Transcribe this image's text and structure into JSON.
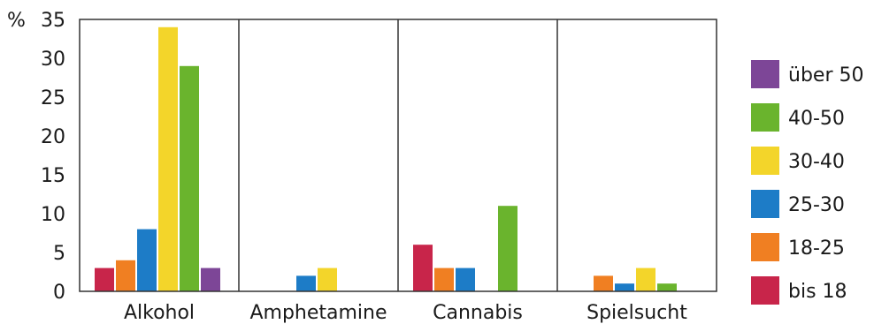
{
  "chart_data": {
    "type": "bar",
    "ylabel": "%",
    "ylim": [
      0,
      35
    ],
    "yticks": [
      0,
      5,
      10,
      15,
      20,
      25,
      30,
      35
    ],
    "categories": [
      "Alkohol",
      "Amphetamine",
      "Cannabis",
      "Spielsucht"
    ],
    "series": [
      {
        "name": "bis 18",
        "color": "#c8254a",
        "values": [
          3,
          0,
          6,
          0
        ]
      },
      {
        "name": "18-25",
        "color": "#f07f22",
        "values": [
          4,
          0,
          3,
          2
        ]
      },
      {
        "name": "25-30",
        "color": "#1d7cc7",
        "values": [
          8,
          2,
          3,
          1
        ]
      },
      {
        "name": "30-40",
        "color": "#f3d52a",
        "values": [
          34,
          3,
          0,
          3
        ]
      },
      {
        "name": "40-50",
        "color": "#6ab42d",
        "values": [
          29,
          0,
          11,
          1
        ]
      },
      {
        "name": "über 50",
        "color": "#7d4697",
        "values": [
          3,
          0,
          0,
          0
        ]
      }
    ],
    "legend_placement": "right",
    "legend_order": [
      "über 50",
      "40-50",
      "30-40",
      "25-30",
      "18-25",
      "bis 18"
    ],
    "grid": false
  }
}
